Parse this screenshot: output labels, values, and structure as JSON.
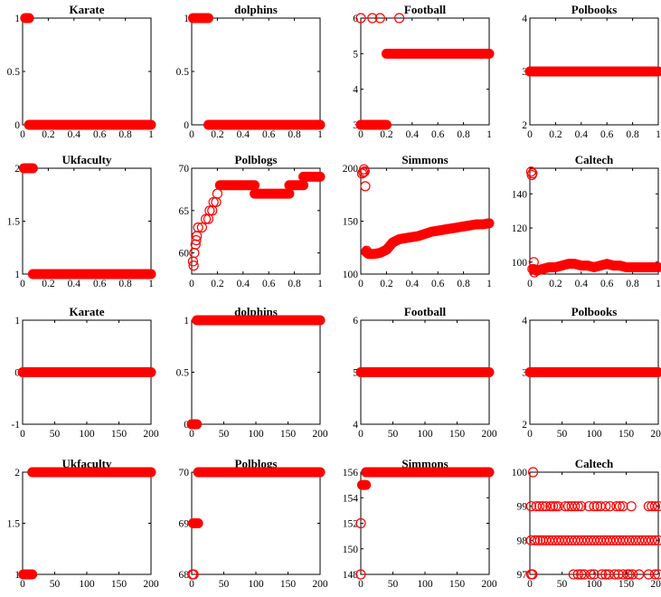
{
  "figure": {
    "marker_color": "#ff0000",
    "marker": "open circle",
    "panels_per_row": 4,
    "rows": 4
  },
  "chart_data": [
    {
      "type": "scatter",
      "title": "Karate",
      "xlim": [
        0,
        1
      ],
      "ylim": [
        0,
        1
      ],
      "xticks": [
        0,
        0.2,
        0.4,
        0.6,
        0.8,
        1
      ],
      "xtick_labels": [
        "0",
        "0.2",
        "0.4",
        "0.6",
        "0.8",
        "1"
      ],
      "yticks": [
        0,
        0.5,
        1
      ],
      "ytick_labels": [
        "0",
        "0.5",
        "1"
      ],
      "segments": [
        {
          "x_from": 0.02,
          "x_to": 0.05,
          "y": 1
        },
        {
          "x_from": 0.05,
          "x_to": 1,
          "y": 0
        }
      ],
      "points": []
    },
    {
      "type": "scatter",
      "title": "dolphins",
      "xlim": [
        0,
        1
      ],
      "ylim": [
        0,
        1
      ],
      "xticks": [
        0,
        0.2,
        0.4,
        0.6,
        0.8,
        1
      ],
      "xtick_labels": [
        "0",
        "0.2",
        "0.4",
        "0.6",
        "0.8",
        "1"
      ],
      "yticks": [
        0,
        0.5,
        1
      ],
      "ytick_labels": [
        "0",
        "0.5",
        "1"
      ],
      "segments": [
        {
          "x_from": 0.01,
          "x_to": 0.13,
          "y": 1
        },
        {
          "x_from": 0.13,
          "x_to": 1,
          "y": 0
        }
      ],
      "points": []
    },
    {
      "type": "scatter",
      "title": "Football",
      "xlim": [
        0,
        1
      ],
      "ylim": [
        3,
        6
      ],
      "xticks": [
        0,
        0.2,
        0.4,
        0.6,
        0.8,
        1
      ],
      "xtick_labels": [
        "0",
        "0.2",
        "0.4",
        "0.6",
        "0.8",
        "1"
      ],
      "yticks": [
        3,
        4,
        5,
        6
      ],
      "ytick_labels": [
        "3",
        "4",
        "5",
        "6"
      ],
      "segments": [
        {
          "x_from": 0.0,
          "x_to": 0.2,
          "y": 3
        },
        {
          "x_from": 0.2,
          "x_to": 1,
          "y": 5
        }
      ],
      "points": [
        [
          0.0,
          6
        ],
        [
          0.09,
          6
        ],
        [
          0.15,
          6
        ],
        [
          0.3,
          6
        ]
      ]
    },
    {
      "type": "scatter",
      "title": "Polbooks",
      "xlim": [
        0,
        1
      ],
      "ylim": [
        2,
        4
      ],
      "xticks": [
        0,
        0.2,
        0.4,
        0.6,
        0.8,
        1
      ],
      "xtick_labels": [
        "0",
        "0.2",
        "0.4",
        "0.6",
        "0.8",
        "1"
      ],
      "yticks": [
        2,
        3,
        4
      ],
      "ytick_labels": [
        "2",
        "3",
        "4"
      ],
      "segments": [
        {
          "x_from": 0.0,
          "x_to": 1,
          "y": 3
        }
      ],
      "points": []
    },
    {
      "type": "scatter",
      "title": "Ukfaculty",
      "xlim": [
        0,
        1
      ],
      "ylim": [
        1,
        2
      ],
      "xticks": [
        0,
        0.2,
        0.4,
        0.6,
        0.8,
        1
      ],
      "xtick_labels": [
        "0",
        "0.2",
        "0.4",
        "0.6",
        "0.8",
        "1"
      ],
      "yticks": [
        1,
        1.5,
        2
      ],
      "ytick_labels": [
        "1",
        "1.5",
        "2"
      ],
      "segments": [
        {
          "x_from": 0.01,
          "x_to": 0.08,
          "y": 2
        },
        {
          "x_from": 0.08,
          "x_to": 1,
          "y": 1
        }
      ],
      "points": []
    },
    {
      "type": "scatter",
      "title": "Polblogs",
      "xlim": [
        0,
        1
      ],
      "ylim": [
        57.5,
        70
      ],
      "xticks": [
        0,
        0.2,
        0.4,
        0.6,
        0.8,
        1
      ],
      "xtick_labels": [
        "0",
        "0.2",
        "0.4",
        "0.6",
        "0.8",
        "1"
      ],
      "yticks": [
        60,
        65,
        70
      ],
      "ytick_labels": [
        "60",
        "65",
        "70"
      ],
      "segments": [
        {
          "x_from": 0.22,
          "x_to": 0.49,
          "y": 68
        },
        {
          "x_from": 0.49,
          "x_to": 0.76,
          "y": 67
        },
        {
          "x_from": 0.76,
          "x_to": 0.87,
          "y": 68
        },
        {
          "x_from": 0.87,
          "x_to": 1,
          "y": 69
        }
      ],
      "points": [
        [
          0.01,
          59
        ],
        [
          0.015,
          58.5
        ],
        [
          0.02,
          60
        ],
        [
          0.03,
          61
        ],
        [
          0.035,
          61.5
        ],
        [
          0.04,
          62
        ],
        [
          0.05,
          63
        ],
        [
          0.08,
          63
        ],
        [
          0.11,
          64
        ],
        [
          0.13,
          64
        ],
        [
          0.14,
          65
        ],
        [
          0.16,
          65
        ],
        [
          0.17,
          66
        ],
        [
          0.19,
          66
        ],
        [
          0.2,
          67
        ]
      ]
    },
    {
      "type": "scatter",
      "title": "Simmons",
      "xlim": [
        0,
        1
      ],
      "ylim": [
        100,
        200
      ],
      "xticks": [
        0,
        0.2,
        0.4,
        0.6,
        0.8,
        1
      ],
      "xtick_labels": [
        "0",
        "0.2",
        "0.4",
        "0.6",
        "0.8",
        "1"
      ],
      "yticks": [
        100,
        150,
        200
      ],
      "ytick_labels": [
        "100",
        "150",
        "200"
      ],
      "curve": [
        [
          0.04,
          121
        ],
        [
          0.06,
          119
        ],
        [
          0.1,
          119
        ],
        [
          0.15,
          120
        ],
        [
          0.2,
          123
        ],
        [
          0.25,
          130
        ],
        [
          0.3,
          133
        ],
        [
          0.35,
          134
        ],
        [
          0.4,
          135
        ],
        [
          0.45,
          136
        ],
        [
          0.5,
          138
        ],
        [
          0.55,
          140
        ],
        [
          0.6,
          141
        ],
        [
          0.65,
          142
        ],
        [
          0.7,
          143
        ],
        [
          0.75,
          144
        ],
        [
          0.8,
          145
        ],
        [
          0.85,
          146
        ],
        [
          0.9,
          147
        ],
        [
          0.95,
          147
        ],
        [
          1.0,
          148
        ]
      ],
      "points": [
        [
          0.01,
          195
        ],
        [
          0.02,
          196
        ],
        [
          0.025,
          199
        ],
        [
          0.03,
          197
        ],
        [
          0.035,
          183
        ],
        [
          0.045,
          122
        ]
      ]
    },
    {
      "type": "scatter",
      "title": "Caltech",
      "xlim": [
        0,
        1
      ],
      "ylim": [
        93,
        155
      ],
      "xticks": [
        0,
        0.2,
        0.4,
        0.6,
        0.8,
        1
      ],
      "xtick_labels": [
        "0",
        "0.2",
        "0.4",
        "0.6",
        "0.8",
        "1"
      ],
      "yticks": [
        100,
        120,
        140
      ],
      "ytick_labels": [
        "100",
        "120",
        "140"
      ],
      "curve": [
        [
          0.03,
          96
        ],
        [
          0.05,
          95
        ],
        [
          0.1,
          96
        ],
        [
          0.15,
          97
        ],
        [
          0.2,
          97
        ],
        [
          0.25,
          98
        ],
        [
          0.3,
          99
        ],
        [
          0.35,
          99
        ],
        [
          0.4,
          98
        ],
        [
          0.45,
          98
        ],
        [
          0.5,
          97
        ],
        [
          0.55,
          98
        ],
        [
          0.6,
          99
        ],
        [
          0.65,
          98
        ],
        [
          0.7,
          98
        ],
        [
          0.75,
          97
        ],
        [
          0.8,
          97
        ],
        [
          0.85,
          97
        ],
        [
          0.9,
          97
        ],
        [
          0.95,
          97
        ],
        [
          1.0,
          97
        ]
      ],
      "points": [
        [
          0.01,
          153
        ],
        [
          0.015,
          151
        ],
        [
          0.02,
          152
        ],
        [
          0.02,
          96
        ],
        [
          0.03,
          100
        ],
        [
          0.035,
          94
        ]
      ]
    },
    {
      "type": "scatter",
      "title": "Karate",
      "xlim": [
        0,
        200
      ],
      "ylim": [
        -1,
        1
      ],
      "xticks": [
        0,
        50,
        100,
        150,
        200
      ],
      "xtick_labels": [
        "0",
        "50",
        "100",
        "150",
        "200"
      ],
      "yticks": [
        -1,
        0,
        1
      ],
      "ytick_labels": [
        "-1",
        "0",
        "1"
      ],
      "segments": [
        {
          "x_from": 0,
          "x_to": 200,
          "y": 0
        }
      ],
      "points": []
    },
    {
      "type": "scatter",
      "title": "dolphins",
      "xlim": [
        0,
        200
      ],
      "ylim": [
        0,
        1
      ],
      "xticks": [
        0,
        50,
        100,
        150,
        200
      ],
      "xtick_labels": [
        "0",
        "50",
        "100",
        "150",
        "200"
      ],
      "yticks": [
        0,
        0.5,
        1
      ],
      "ytick_labels": [
        "0",
        "0.5",
        "1"
      ],
      "segments": [
        {
          "x_from": 0,
          "x_to": 8,
          "y": 0
        },
        {
          "x_from": 8,
          "x_to": 200,
          "y": 1
        }
      ],
      "points": []
    },
    {
      "type": "scatter",
      "title": "Football",
      "xlim": [
        0,
        200
      ],
      "ylim": [
        4,
        6
      ],
      "xticks": [
        0,
        50,
        100,
        150,
        200
      ],
      "xtick_labels": [
        "0",
        "50",
        "100",
        "150",
        "200"
      ],
      "yticks": [
        4,
        5,
        6
      ],
      "ytick_labels": [
        "4",
        "5",
        "6"
      ],
      "segments": [
        {
          "x_from": 0,
          "x_to": 200,
          "y": 5
        }
      ],
      "points": []
    },
    {
      "type": "scatter",
      "title": "Polbooks",
      "xlim": [
        0,
        200
      ],
      "ylim": [
        2,
        4
      ],
      "xticks": [
        0,
        50,
        100,
        150,
        200
      ],
      "xtick_labels": [
        "0",
        "50",
        "100",
        "150",
        "200"
      ],
      "yticks": [
        2,
        3,
        4
      ],
      "ytick_labels": [
        "2",
        "3",
        "4"
      ],
      "segments": [
        {
          "x_from": 0,
          "x_to": 200,
          "y": 3
        }
      ],
      "points": []
    },
    {
      "type": "scatter",
      "title": "Ukfaculty",
      "xlim": [
        0,
        200
      ],
      "ylim": [
        1,
        2
      ],
      "xticks": [
        0,
        50,
        100,
        150,
        200
      ],
      "xtick_labels": [
        "0",
        "50",
        "100",
        "150",
        "200"
      ],
      "yticks": [
        1,
        1.5,
        2
      ],
      "ytick_labels": [
        "1",
        "1.5",
        "2"
      ],
      "segments": [
        {
          "x_from": 1,
          "x_to": 15,
          "y": 1
        },
        {
          "x_from": 15,
          "x_to": 200,
          "y": 2
        }
      ],
      "points": []
    },
    {
      "type": "scatter",
      "title": "Polblogs",
      "xlim": [
        0,
        200
      ],
      "ylim": [
        68,
        70
      ],
      "xticks": [
        0,
        50,
        100,
        150,
        200
      ],
      "xtick_labels": [
        "0",
        "50",
        "100",
        "150",
        "200"
      ],
      "yticks": [
        68,
        69,
        70
      ],
      "ytick_labels": [
        "68",
        "69",
        "70"
      ],
      "segments": [
        {
          "x_from": 2,
          "x_to": 10,
          "y": 69
        },
        {
          "x_from": 10,
          "x_to": 200,
          "y": 70
        }
      ],
      "points": [
        [
          1,
          68
        ],
        [
          3,
          68
        ]
      ]
    },
    {
      "type": "scatter",
      "title": "Simmons",
      "xlim": [
        0,
        200
      ],
      "ylim": [
        148,
        156
      ],
      "xticks": [
        0,
        50,
        100,
        150,
        200
      ],
      "xtick_labels": [
        "0",
        "50",
        "100",
        "150",
        "200"
      ],
      "yticks": [
        148,
        150,
        152,
        154,
        156
      ],
      "ytick_labels": [
        "148",
        "150",
        "152",
        "154",
        "156"
      ],
      "segments": [
        {
          "x_from": 2,
          "x_to": 8,
          "y": 155
        },
        {
          "x_from": 8,
          "x_to": 200,
          "y": 156
        }
      ],
      "points": [
        [
          0,
          148
        ],
        [
          0,
          152
        ]
      ]
    },
    {
      "type": "scatter",
      "title": "Caltech",
      "xlim": [
        0,
        200
      ],
      "ylim": [
        97,
        100
      ],
      "xticks": [
        0,
        50,
        100,
        150,
        200
      ],
      "xtick_labels": [
        "0",
        "50",
        "100",
        "150",
        "200"
      ],
      "yticks": [
        97,
        98,
        99,
        100
      ],
      "ytick_labels": [
        "97",
        "98",
        "99",
        "100"
      ],
      "points": [
        [
          5,
          100
        ],
        [
          2,
          97
        ],
        [
          4,
          97
        ],
        [
          68,
          97
        ],
        [
          75,
          97
        ],
        [
          80,
          97
        ],
        [
          85,
          97
        ],
        [
          95,
          97
        ],
        [
          100,
          97
        ],
        [
          112,
          97
        ],
        [
          118,
          97
        ],
        [
          123,
          97
        ],
        [
          132,
          97
        ],
        [
          138,
          97
        ],
        [
          145,
          97
        ],
        [
          152,
          97
        ],
        [
          155,
          97
        ],
        [
          160,
          97
        ],
        [
          170,
          97
        ],
        [
          185,
          97
        ],
        [
          195,
          97
        ],
        [
          200,
          97
        ],
        [
          2,
          99
        ],
        [
          10,
          99
        ],
        [
          15,
          99
        ],
        [
          20,
          99
        ],
        [
          25,
          99
        ],
        [
          32,
          99
        ],
        [
          36,
          99
        ],
        [
          40,
          99
        ],
        [
          44,
          99
        ],
        [
          55,
          99
        ],
        [
          60,
          99
        ],
        [
          65,
          99
        ],
        [
          70,
          99
        ],
        [
          75,
          99
        ],
        [
          80,
          99
        ],
        [
          92,
          99
        ],
        [
          100,
          99
        ],
        [
          105,
          99
        ],
        [
          110,
          99
        ],
        [
          118,
          99
        ],
        [
          125,
          99
        ],
        [
          135,
          99
        ],
        [
          140,
          99
        ],
        [
          145,
          99
        ],
        [
          158,
          99
        ],
        [
          185,
          99
        ],
        [
          190,
          99
        ],
        [
          195,
          99
        ],
        [
          200,
          99
        ],
        [
          2,
          98
        ],
        [
          8,
          98
        ],
        [
          12,
          98
        ],
        [
          16,
          98
        ],
        [
          20,
          98
        ],
        [
          25,
          98
        ],
        [
          30,
          98
        ],
        [
          35,
          98
        ],
        [
          40,
          98
        ],
        [
          45,
          98
        ],
        [
          50,
          98
        ],
        [
          55,
          98
        ],
        [
          60,
          98
        ],
        [
          65,
          98
        ],
        [
          70,
          98
        ],
        [
          75,
          98
        ],
        [
          80,
          98
        ],
        [
          85,
          98
        ],
        [
          90,
          98
        ],
        [
          95,
          98
        ],
        [
          100,
          98
        ],
        [
          105,
          98
        ],
        [
          110,
          98
        ],
        [
          115,
          98
        ],
        [
          120,
          98
        ],
        [
          125,
          98
        ],
        [
          130,
          98
        ],
        [
          135,
          98
        ],
        [
          140,
          98
        ],
        [
          145,
          98
        ],
        [
          150,
          98
        ],
        [
          155,
          98
        ],
        [
          160,
          98
        ],
        [
          165,
          98
        ],
        [
          170,
          98
        ],
        [
          175,
          98
        ],
        [
          180,
          98
        ],
        [
          185,
          98
        ],
        [
          190,
          98
        ],
        [
          195,
          98
        ],
        [
          200,
          98
        ]
      ]
    }
  ]
}
